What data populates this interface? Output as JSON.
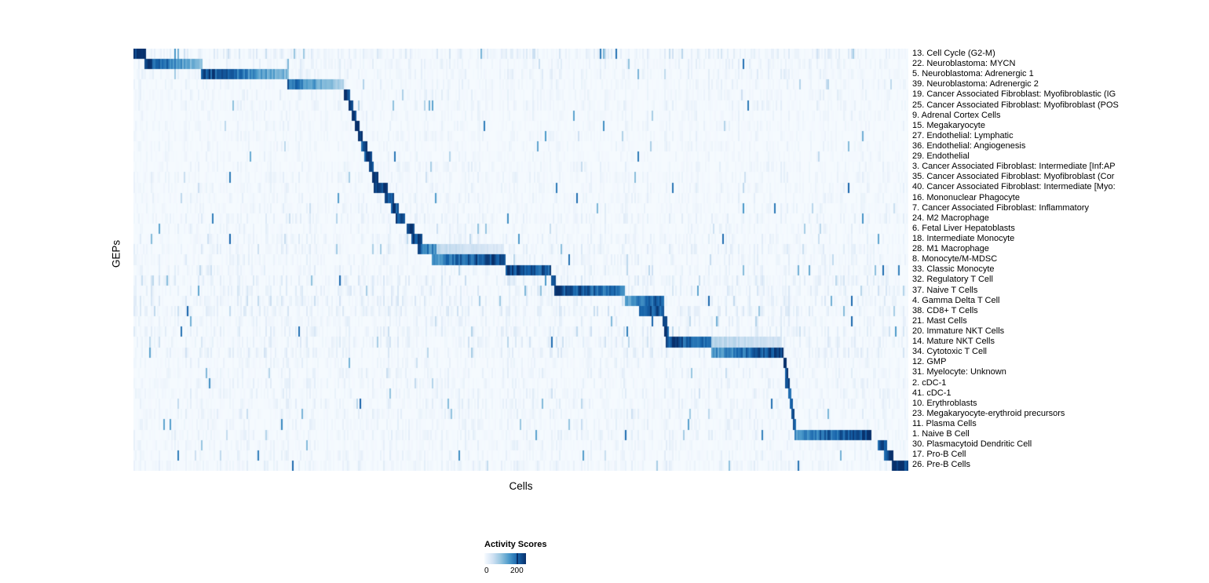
{
  "figure": {
    "background": "#ffffff"
  },
  "chart_data": {
    "type": "heatmap",
    "title": "",
    "xlabel": "Cells",
    "ylabel": "GEPs",
    "grid": false,
    "x_axis_note": "columns are individual cells, no tick labels shown",
    "value_range": [
      0,
      200
    ],
    "legend": {
      "title": "Activity Scores",
      "position": "bottom",
      "tick_labels": [
        "0",
        "200"
      ],
      "tick_values": [
        0,
        200
      ]
    },
    "colormap": {
      "name": "Blues",
      "stops": [
        "#f7fbff",
        "#d1e2f3",
        "#94c4df",
        "#4a98c9",
        "#1764ab",
        "#08306b"
      ]
    },
    "block_encoding": "blocks = [x_start_fraction, x_end_fraction, value_at_start, value_at_end] of high-activity region along cells axis; values are activity scores",
    "rows": [
      {
        "label": "13. Cell Cycle (G2-M)",
        "noise": 0.55,
        "blocks": [
          [
            0.0,
            0.016,
            235,
            235
          ]
        ]
      },
      {
        "label": "22. Neuroblastoma: MYCN",
        "noise": 0.3,
        "blocks": [
          [
            0.015,
            0.09,
            235,
            85
          ]
        ]
      },
      {
        "label": "5. Neuroblastoma: Adrenergic 1",
        "noise": 0.3,
        "blocks": [
          [
            0.088,
            0.2,
            225,
            105
          ]
        ]
      },
      {
        "label": "39. Neuroblastoma: Adrenergic 2",
        "noise": 0.25,
        "blocks": [
          [
            0.198,
            0.272,
            195,
            75
          ]
        ]
      },
      {
        "label": "19. Cancer Associated Fibroblast: Myofibroblastic (IG",
        "noise": 0.25,
        "blocks": [
          [
            0.272,
            0.279,
            225,
            225
          ]
        ]
      },
      {
        "label": "25. Cancer Associated Fibroblast: Myofibroblast (POS",
        "noise": 0.25,
        "blocks": [
          [
            0.277,
            0.284,
            225,
            225
          ]
        ]
      },
      {
        "label": "9. Adrenal Cortex Cells",
        "noise": 0.2,
        "blocks": [
          [
            0.281,
            0.288,
            215,
            215
          ]
        ]
      },
      {
        "label": "15. Megakaryocyte",
        "noise": 0.2,
        "blocks": [
          [
            0.285,
            0.292,
            225,
            225
          ]
        ]
      },
      {
        "label": "27. Endothelial: Lymphatic",
        "noise": 0.2,
        "blocks": [
          [
            0.289,
            0.296,
            225,
            225
          ]
        ]
      },
      {
        "label": "36. Endothelial: Angiogenesis",
        "noise": 0.2,
        "blocks": [
          [
            0.293,
            0.301,
            215,
            215
          ]
        ]
      },
      {
        "label": "29. Endothelial",
        "noise": 0.2,
        "blocks": [
          [
            0.297,
            0.308,
            225,
            225
          ]
        ]
      },
      {
        "label": "3. Cancer Associated Fibroblast: Intermediate [Inf:AP",
        "noise": 0.25,
        "blocks": [
          [
            0.303,
            0.311,
            215,
            215
          ]
        ]
      },
      {
        "label": "35. Cancer Associated Fibroblast: Myofibroblast (Cor",
        "noise": 0.25,
        "blocks": [
          [
            0.307,
            0.316,
            225,
            225
          ]
        ]
      },
      {
        "label": "40. Cancer Associated Fibroblast: Intermediate [Myo:",
        "noise": 0.25,
        "blocks": [
          [
            0.311,
            0.329,
            220,
            220
          ]
        ]
      },
      {
        "label": "16. Mononuclear Phagocyte",
        "noise": 0.25,
        "blocks": [
          [
            0.325,
            0.336,
            225,
            225
          ]
        ]
      },
      {
        "label": "7. Cancer Associated Fibroblast: Inflammatory",
        "noise": 0.25,
        "blocks": [
          [
            0.332,
            0.342,
            215,
            215
          ]
        ]
      },
      {
        "label": "24. M2 Macrophage",
        "noise": 0.3,
        "blocks": [
          [
            0.338,
            0.351,
            220,
            220
          ]
        ]
      },
      {
        "label": "6. Fetal Liver Hepatoblasts",
        "noise": 0.25,
        "blocks": [
          [
            0.352,
            0.363,
            225,
            225
          ]
        ]
      },
      {
        "label": "18. Intermediate Monocyte",
        "noise": 0.3,
        "blocks": [
          [
            0.358,
            0.372,
            215,
            215
          ]
        ]
      },
      {
        "label": "28. M1 Macrophage",
        "noise": 0.35,
        "blocks": [
          [
            0.366,
            0.391,
            205,
            140
          ],
          [
            0.391,
            0.478,
            60,
            35
          ]
        ]
      },
      {
        "label": "8. Monocyte/M-MDSC",
        "noise": 0.3,
        "blocks": [
          [
            0.385,
            0.481,
            150,
            235
          ]
        ]
      },
      {
        "label": "33. Classic Monocyte",
        "noise": 0.3,
        "blocks": [
          [
            0.481,
            0.538,
            230,
            205
          ]
        ]
      },
      {
        "label": "32. Regulatory T Cell",
        "noise": 0.45,
        "blocks": [
          [
            0.538,
            0.545,
            215,
            215
          ]
        ]
      },
      {
        "label": "37. Naive T Cells",
        "noise": 0.45,
        "blocks": [
          [
            0.543,
            0.634,
            225,
            170
          ]
        ]
      },
      {
        "label": "4. Gamma Delta T Cell",
        "noise": 0.45,
        "blocks": [
          [
            0.634,
            0.684,
            130,
            205
          ]
        ]
      },
      {
        "label": "38. CD8+ T Cells",
        "noise": 0.45,
        "blocks": [
          [
            0.652,
            0.684,
            205,
            205
          ]
        ]
      },
      {
        "label": "21. Mast Cells",
        "noise": 0.3,
        "blocks": [
          [
            0.682,
            0.688,
            225,
            225
          ]
        ]
      },
      {
        "label": "20. Immature NKT Cells",
        "noise": 0.4,
        "blocks": [
          [
            0.685,
            0.691,
            215,
            215
          ]
        ]
      },
      {
        "label": "14. Mature NKT Cells",
        "noise": 0.45,
        "blocks": [
          [
            0.687,
            0.746,
            225,
            160
          ],
          [
            0.746,
            0.835,
            70,
            45
          ]
        ]
      },
      {
        "label": "34. Cytotoxic T Cell",
        "noise": 0.45,
        "blocks": [
          [
            0.746,
            0.838,
            140,
            235
          ]
        ]
      },
      {
        "label": "12. GMP",
        "noise": 0.25,
        "blocks": [
          [
            0.838,
            0.843,
            215,
            215
          ]
        ]
      },
      {
        "label": "31. Myelocyte: Unknown",
        "noise": 0.3,
        "blocks": [
          [
            0.84,
            0.845,
            205,
            205
          ]
        ]
      },
      {
        "label": "2. cDC-1",
        "noise": 0.3,
        "blocks": [
          [
            0.841,
            0.847,
            215,
            215
          ]
        ]
      },
      {
        "label": "41. cDC-1",
        "noise": 0.3,
        "blocks": [
          [
            0.844,
            0.85,
            205,
            205
          ]
        ]
      },
      {
        "label": "10. Erythroblasts",
        "noise": 0.3,
        "blocks": [
          [
            0.846,
            0.852,
            215,
            215
          ]
        ]
      },
      {
        "label": "23. Megakaryocyte-erythroid precursors",
        "noise": 0.3,
        "blocks": [
          [
            0.849,
            0.854,
            210,
            210
          ]
        ]
      },
      {
        "label": "11. Plasma Cells",
        "noise": 0.25,
        "blocks": [
          [
            0.851,
            0.856,
            215,
            215
          ]
        ]
      },
      {
        "label": "1. Naive B Cell",
        "noise": 0.3,
        "blocks": [
          [
            0.853,
            0.953,
            150,
            235
          ]
        ]
      },
      {
        "label": "30. Plasmacytoid Dendritic Cell",
        "noise": 0.25,
        "blocks": [
          [
            0.961,
            0.972,
            215,
            215
          ]
        ]
      },
      {
        "label": "17. Pro-B Cell",
        "noise": 0.25,
        "blocks": [
          [
            0.969,
            0.98,
            220,
            220
          ]
        ]
      },
      {
        "label": "26. Pre-B Cells",
        "noise": 0.3,
        "blocks": [
          [
            0.979,
            1.0,
            230,
            230
          ]
        ]
      }
    ]
  }
}
